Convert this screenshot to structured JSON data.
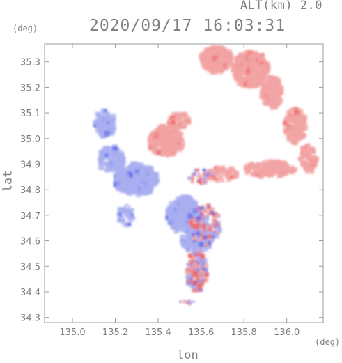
{
  "header": {
    "alt_label": "ALT(km) 2.0",
    "timestamp": "2020/09/17 16:03:31"
  },
  "axes": {
    "lat_unit": "(deg)",
    "lon_unit": "(deg)",
    "xlabel": "lon",
    "ylabel": "lat"
  },
  "chart_data": {
    "type": "heatmap",
    "title": "2020/09/17 16:03:31",
    "xlabel": "lon",
    "ylabel": "lat",
    "xlim": [
      134.87,
      136.17
    ],
    "ylim": [
      34.28,
      35.37
    ],
    "x_ticks": [
      "135.0",
      "135.2",
      "135.4",
      "135.6",
      "135.8",
      "136.0"
    ],
    "y_ticks": [
      "34.3",
      "34.4",
      "34.5",
      "34.6",
      "34.7",
      "34.8",
      "34.9",
      "35.0",
      "35.1",
      "35.2",
      "35.3"
    ],
    "colors": {
      "positive": "#f2a3a3",
      "negative": "#a8aef0",
      "positive_strong": "#ee6b6b",
      "negative_strong": "#5d6ce8"
    },
    "regions": [
      {
        "name": "north arc",
        "sign": "positive",
        "lon": [
          135.58,
          136.15
        ],
        "lat": [
          34.82,
          35.36
        ]
      },
      {
        "name": "central north",
        "sign": "positive",
        "lon": [
          135.36,
          135.55
        ],
        "lat": [
          34.88,
          35.08
        ]
      },
      {
        "name": "west cluster",
        "sign": "negative",
        "lon": [
          135.1,
          135.42
        ],
        "lat": [
          34.66,
          35.12
        ]
      },
      {
        "name": "south cluster",
        "sign": "negative",
        "lon": [
          135.44,
          135.68
        ],
        "lat": [
          34.55,
          34.78
        ]
      },
      {
        "name": "south speckle",
        "sign": "mixed",
        "lon": [
          135.48,
          135.68
        ],
        "lat": [
          34.38,
          34.62
        ]
      }
    ]
  }
}
